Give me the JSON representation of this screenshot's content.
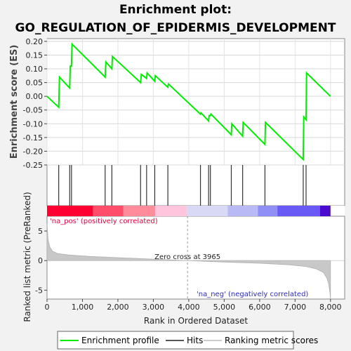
{
  "chart_data": {
    "type": "line",
    "title_line1": "Enrichment plot:",
    "title_line2": "GO_REGULATION_OF_EPIDERMIS_DEVELOPMENT",
    "es_panel": {
      "ylabel": "Enrichment score (ES)",
      "ylim": [
        -0.25,
        0.21
      ],
      "yticks": [
        "0.20",
        "0.15",
        "0.10",
        "0.05",
        "0.00",
        "-0.05",
        "-0.10",
        "-0.15",
        "-0.20",
        "-0.25"
      ],
      "series": [
        {
          "name": "Enrichment profile",
          "color": "#00ee00",
          "x": [
            0,
            330,
            350,
            640,
            655,
            690,
            705,
            1640,
            1660,
            1830,
            1845,
            2640,
            2660,
            2810,
            2825,
            3040,
            3055,
            3410,
            3425,
            4330,
            4345,
            4560,
            4575,
            4610,
            4625,
            5200,
            5215,
            5520,
            5535,
            6150,
            6165,
            7230,
            7245,
            7310,
            7325,
            8000
          ],
          "y": [
            0.0,
            -0.04,
            0.07,
            0.03,
            0.11,
            0.11,
            0.19,
            0.07,
            0.125,
            0.1,
            0.145,
            0.05,
            0.08,
            0.065,
            0.085,
            0.055,
            0.075,
            0.033,
            0.045,
            -0.065,
            -0.06,
            -0.09,
            -0.07,
            -0.07,
            -0.065,
            -0.14,
            -0.1,
            -0.145,
            -0.095,
            -0.175,
            -0.095,
            -0.23,
            -0.075,
            -0.085,
            0.085,
            0.0
          ]
        }
      ]
    },
    "hits": [
      330,
      640,
      690,
      1640,
      1830,
      2640,
      2810,
      3040,
      3410,
      4330,
      4560,
      4610,
      5200,
      5520,
      6150,
      7230,
      7310
    ],
    "ranked_panel": {
      "ylabel": "Ranked list metric (PreRanked)",
      "yticks": [
        "5",
        "0",
        "-5"
      ],
      "ytick_values": [
        5,
        0,
        -5
      ],
      "ylim": [
        -6.5,
        7.5
      ],
      "zero_cross_label": "Zero cross at 3965",
      "zero_cross": 3965,
      "pos_label": "'na_pos' (positively correlated)",
      "neg_label": "'na_neg' (negatively correlated)",
      "profile": [
        [
          0,
          6.2
        ],
        [
          30,
          3.5
        ],
        [
          80,
          2.3
        ],
        [
          150,
          1.6
        ],
        [
          300,
          1.2
        ],
        [
          600,
          0.95
        ],
        [
          1200,
          0.7
        ],
        [
          2000,
          0.5
        ],
        [
          3000,
          0.25
        ],
        [
          3965,
          0.0
        ],
        [
          5000,
          -0.25
        ],
        [
          6000,
          -0.45
        ],
        [
          6800,
          -0.7
        ],
        [
          7300,
          -1.0
        ],
        [
          7600,
          -1.4
        ],
        [
          7800,
          -2.0
        ],
        [
          7900,
          -3.0
        ],
        [
          7950,
          -4.0
        ],
        [
          7985,
          -5.5
        ],
        [
          8000,
          -6.5
        ]
      ]
    },
    "xaxis": {
      "label": "Rank in Ordered Dataset",
      "xlim": [
        0,
        8400
      ],
      "ticks": [
        "0",
        "1,000",
        "2,000",
        "3,000",
        "4,000",
        "5,000",
        "6,000",
        "7,000",
        "8,000"
      ],
      "tick_values": [
        0,
        1000,
        2000,
        3000,
        4000,
        5000,
        6000,
        7000,
        8000
      ]
    },
    "color_bar": [
      {
        "from": 0,
        "to": 1300,
        "color": "#ff0033"
      },
      {
        "from": 1300,
        "to": 2150,
        "color": "#ff4d6b"
      },
      {
        "from": 2150,
        "to": 3050,
        "color": "#ff8c9b"
      },
      {
        "from": 3050,
        "to": 3950,
        "color": "#ffc5dd"
      },
      {
        "from": 3950,
        "to": 5100,
        "color": "#d9d9f5"
      },
      {
        "from": 5100,
        "to": 5950,
        "color": "#b9b9f5"
      },
      {
        "from": 5950,
        "to": 6500,
        "color": "#8f8ff5"
      },
      {
        "from": 6500,
        "to": 7700,
        "color": "#6a5af5"
      },
      {
        "from": 7700,
        "to": 8000,
        "color": "#4b0ad0"
      }
    ],
    "legend": [
      {
        "label": "Enrichment profile",
        "color": "#00ee00"
      },
      {
        "label": "Hits",
        "color": "#555555"
      },
      {
        "label": "Ranking metric scores",
        "color": "#cccccc"
      }
    ]
  }
}
